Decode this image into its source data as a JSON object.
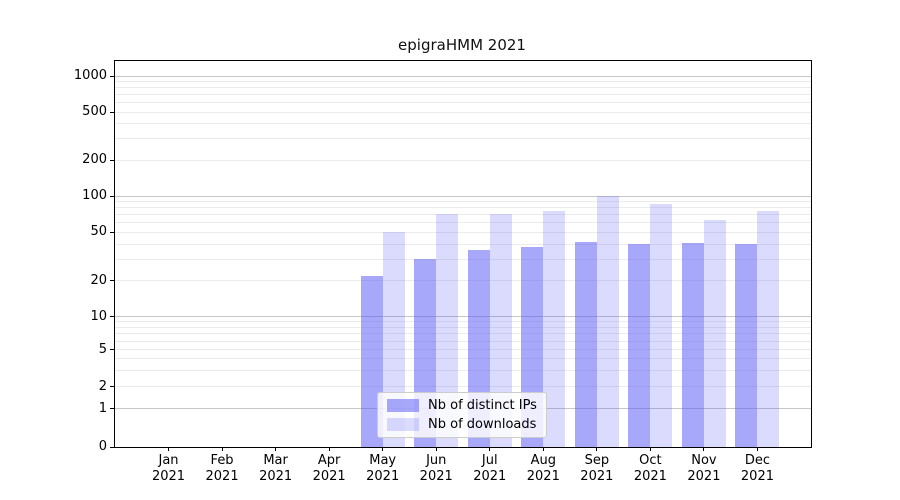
{
  "chart_data": {
    "type": "bar",
    "title": "epigraHMM 2021",
    "categories": [
      "Jan 2021",
      "Feb 2021",
      "Mar 2021",
      "Apr 2021",
      "May 2021",
      "Jun 2021",
      "Jul 2021",
      "Aug 2021",
      "Sep 2021",
      "Oct 2021",
      "Nov 2021",
      "Dec 2021"
    ],
    "series": [
      {
        "name": "Nb of distinct IPs",
        "color": "#a7a7f9",
        "color_rgba": "rgba(90,90,245,0.53)",
        "values": [
          0,
          0,
          0,
          0,
          22,
          30,
          36,
          38,
          42,
          40,
          41,
          40
        ]
      },
      {
        "name": "Nb of downloads",
        "color": "#dadaf9",
        "color_rgba": "rgba(90,90,245,0.22)",
        "values": [
          0,
          0,
          0,
          0,
          50,
          71,
          71,
          76,
          100,
          86,
          64,
          75
        ]
      }
    ],
    "yticks": [
      0,
      1,
      2,
      5,
      10,
      20,
      50,
      100,
      200,
      500,
      1000
    ],
    "ylim": [
      0,
      1300
    ],
    "yscale": "symlog",
    "xlabel": "",
    "ylabel": "",
    "grid": "horizontal major+minor",
    "legend_position": "lower center",
    "colors": {
      "grid_major": "#c6c6c6",
      "grid_minor": "#ebebeb",
      "axis": "#000000",
      "legend_border": "#cccccc"
    }
  }
}
